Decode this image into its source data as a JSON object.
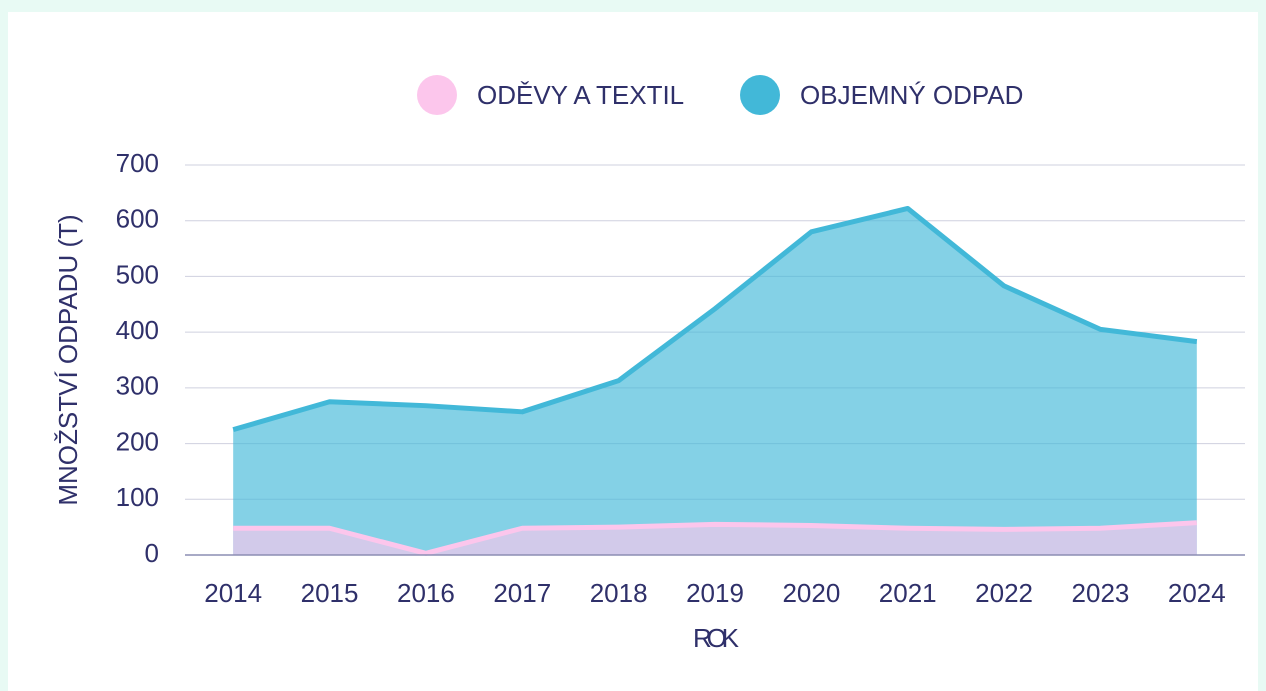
{
  "chart_data": {
    "type": "area",
    "x_label": "ROK",
    "y_label": "MNOŽSTVÍ ODPADU (T)",
    "categories": [
      "2014",
      "2015",
      "2016",
      "2017",
      "2018",
      "2019",
      "2020",
      "2021",
      "2022",
      "2023",
      "2024"
    ],
    "series": [
      {
        "name": "ODĚVY A TEXTIL",
        "color": "#fcc6ec",
        "values": [
          48,
          48,
          3,
          48,
          50,
          55,
          53,
          48,
          46,
          48,
          58
        ]
      },
      {
        "name": "OBJEMNÝ ODPAD",
        "color": "#42b8d8",
        "values": [
          225,
          275,
          268,
          257,
          313,
          442,
          580,
          622,
          483,
          405,
          383
        ]
      }
    ],
    "ylim": [
      0,
      700
    ],
    "yticks": [
      0,
      100,
      200,
      300,
      400,
      500,
      600,
      700
    ],
    "grid": true,
    "legend": "top"
  }
}
